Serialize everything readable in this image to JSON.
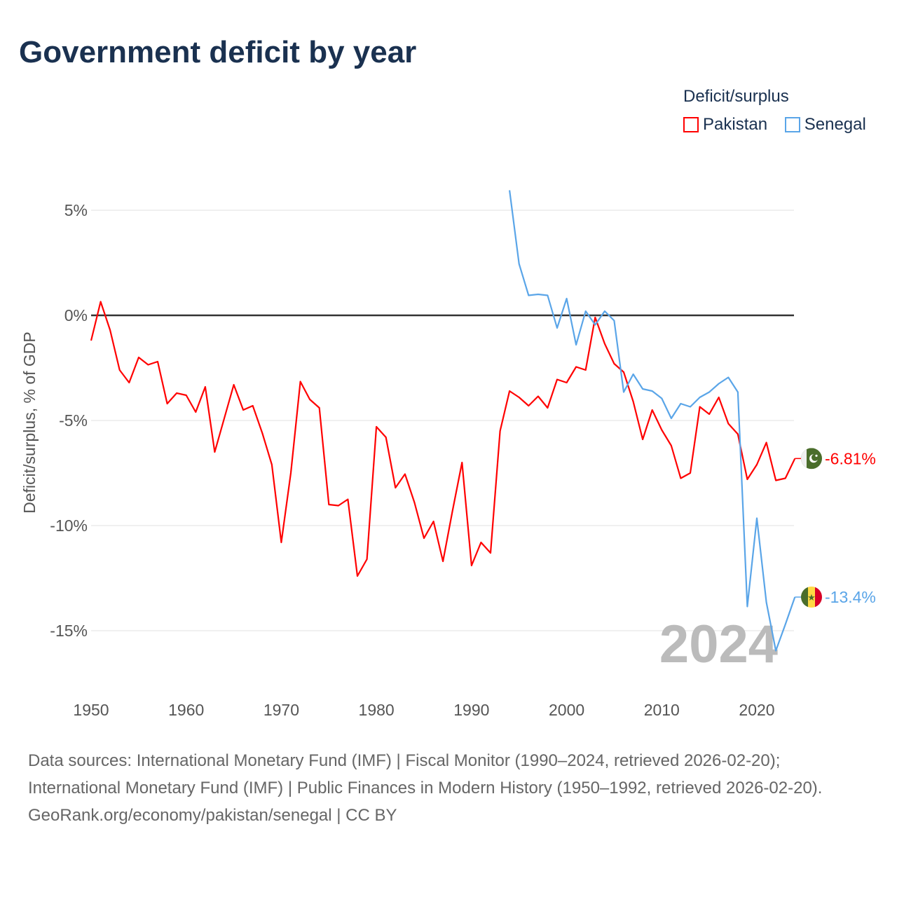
{
  "title": "Government deficit by year",
  "legend": {
    "title": "Deficit/surplus",
    "items": [
      {
        "label": "Pakistan",
        "color": "#ff0000"
      },
      {
        "label": "Senegal",
        "color": "#5aa5e8"
      }
    ]
  },
  "watermark_year": "2024",
  "footer": {
    "sources": "Data sources: International Monetary Fund (IMF) | Fiscal Monitor (1990–2024, retrieved 2026-02-20); International Monetary Fund (IMF) | Public Finances in Modern History (1950–1992, retrieved 2026-02-20).",
    "credit": "GeoRank.org/economy/pakistan/senegal | CC BY"
  },
  "chart_data": {
    "type": "line",
    "title": "Government deficit by year",
    "xlabel": "",
    "ylabel": "Deficit/surplus, % of GDP",
    "xlim": [
      1950,
      2024
    ],
    "ylim": [
      -17,
      6
    ],
    "x_ticks": [
      1950,
      1960,
      1970,
      1980,
      1990,
      2000,
      2010,
      2020
    ],
    "y_ticks": [
      5,
      0,
      -5,
      -10,
      -15
    ],
    "y_tick_labels": [
      "5%",
      "0%",
      "-5%",
      "-10%",
      "-15%"
    ],
    "x_tick_labels": [
      "1950",
      "1960",
      "1970",
      "1980",
      "1990",
      "2000",
      "2010",
      "2020"
    ],
    "grid": true,
    "legend_position": "top-right",
    "series": [
      {
        "name": "Pakistan",
        "color": "#ff0000",
        "flag": "pakistan-flag",
        "end_label": "-6.81%",
        "start_year": 1950,
        "values": [
          -1.2,
          0.65,
          -0.7,
          -2.6,
          -3.2,
          -2.0,
          -2.35,
          -2.2,
          -4.2,
          -3.7,
          -3.8,
          -4.6,
          -3.4,
          -6.5,
          -4.9,
          -3.3,
          -4.5,
          -4.3,
          -5.6,
          -7.1,
          -10.8,
          -7.5,
          -3.15,
          -4.0,
          -4.4,
          -9.0,
          -9.05,
          -8.75,
          -12.4,
          -11.6,
          -5.3,
          -5.8,
          -8.2,
          -7.55,
          -8.9,
          -10.6,
          -9.8,
          -11.7,
          -9.3,
          -7.0,
          -11.9,
          -10.8,
          -11.3,
          -5.5,
          -3.6,
          -3.9,
          -4.3,
          -3.85,
          -4.4,
          -3.05,
          -3.2,
          -2.45,
          -2.6,
          -0.1,
          -1.35,
          -2.3,
          -2.7,
          -4.1,
          -5.9,
          -4.5,
          -5.45,
          -6.2,
          -7.75,
          -7.5,
          -4.35,
          -4.7,
          -3.9,
          -5.15,
          -5.65,
          -7.8,
          -7.1,
          -6.05,
          -7.85,
          -7.75,
          -6.81
        ]
      },
      {
        "name": "Senegal",
        "color": "#5aa5e8",
        "flag": "senegal-flag",
        "end_label": "-13.4%",
        "start_year": 1994,
        "values": [
          5.95,
          2.45,
          0.95,
          1.0,
          0.95,
          -0.6,
          0.8,
          -1.4,
          0.2,
          -0.45,
          0.2,
          -0.25,
          -3.65,
          -2.8,
          -3.5,
          -3.6,
          -3.95,
          -4.9,
          -4.2,
          -4.35,
          -3.9,
          -3.65,
          -3.25,
          -2.95,
          -3.65,
          -13.85,
          -9.65,
          -13.65,
          -15.95,
          -14.7,
          -13.4
        ]
      }
    ]
  }
}
